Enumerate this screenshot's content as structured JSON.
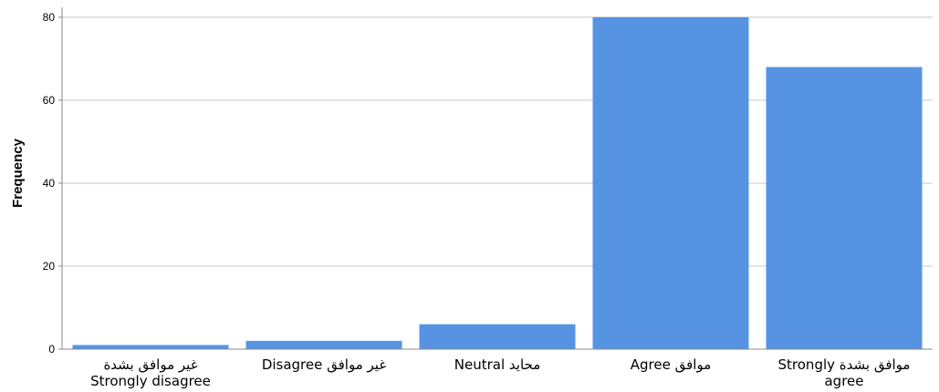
{
  "chart_data": {
    "type": "bar",
    "ylabel": "Frequency",
    "xlabel": "",
    "ylim": [
      0,
      80
    ],
    "yticks": [
      0,
      20,
      40,
      60,
      80
    ],
    "grid": true,
    "bar_color": "#5694E3",
    "categories": [
      [
        "غير موافق بشدة",
        "Strongly disagree"
      ],
      [
        "Disagree غير موافق"
      ],
      [
        "Neutral محايد"
      ],
      [
        "Agree موافق"
      ],
      [
        "Strongly موافق بشدة",
        "agree"
      ]
    ],
    "values": [
      1,
      2,
      6,
      80,
      68
    ]
  }
}
